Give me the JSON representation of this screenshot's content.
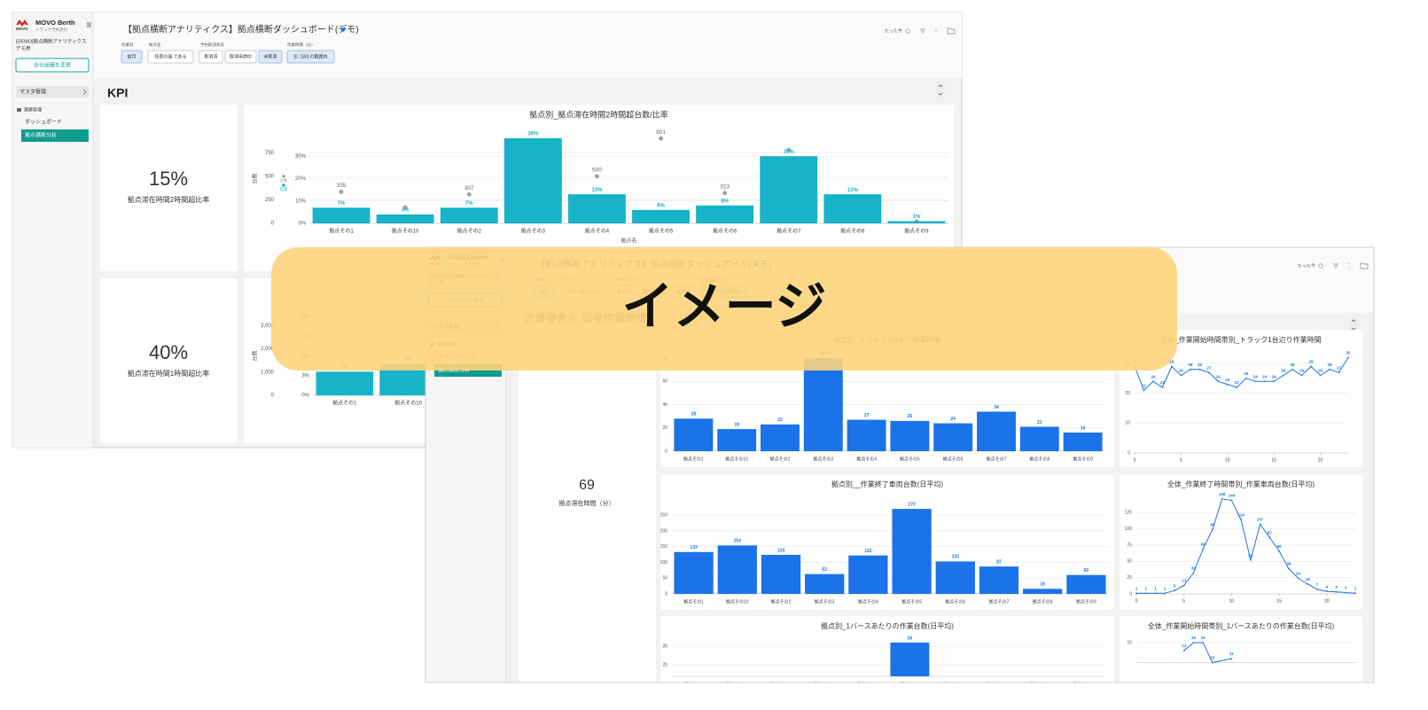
{
  "sidebar": {
    "brand": "MOVO Berth",
    "logo_text": "MOVO",
    "tagline": "トラック予約受付",
    "org": [
      "[DEMO]拠点横断アナリティクス",
      "デモ用"
    ],
    "change_org": "会社組織を変更",
    "menu": [
      "マスタ管理",
      "実績管理",
      "ダッシュボード",
      "拠点横断分析"
    ]
  },
  "header": {
    "title": "【拠点横断アナリティクス】拠点横断ダッシュボード(デモ)",
    "updated": "たった今",
    "filters": [
      {
        "label": "作業日",
        "options": [
          "前月"
        ],
        "selected": [
          0
        ]
      },
      {
        "label": "拠点名",
        "options": [
          "任意の値 である"
        ],
        "selected": []
      },
      {
        "label": "予約取消状況",
        "options": [
          "取消済",
          "取消申請中",
          "未取消"
        ],
        "selected": [
          2
        ]
      },
      {
        "label": "作業時間（分）",
        "options": [
          "[0, 180] の範囲内"
        ],
        "selected": [
          0
        ]
      }
    ]
  },
  "back": {
    "section": "KPI",
    "kpis": [
      {
        "value": "15%",
        "label": "拠点滞在時間2時間超比率"
      },
      {
        "value": "40%",
        "label": "拠点滞在時間1時間超比率"
      }
    ],
    "charts": [
      {
        "type": "bar",
        "title": "拠点別_拠点滞在時間2時間超台数/比率",
        "x_label": "拠点名",
        "y_label": "台数",
        "categories": [
          "拠点その1",
          "拠点その10",
          "拠点その2",
          "拠点その3",
          "拠点その4",
          "拠点その5",
          "拠点その6",
          "拠点その7",
          "拠点その8",
          "拠点その9"
        ],
        "series": [
          {
            "name": "台数",
            "kind": "point",
            "color": "#9e9e9e",
            "values": [
              335,
              170,
              307,
              820,
              500,
              901,
              323,
              780,
              110,
              20
            ],
            "value_labels": [
              "335",
              null,
              "307",
              null,
              "500",
              "901",
              "323",
              null,
              null,
              null
            ]
          },
          {
            "name": "比率",
            "axis": "y2",
            "color": "#17b3c8",
            "values": [
              7,
              4,
              7,
              38,
              13,
              6,
              8,
              30,
              13,
              1
            ],
            "value_labels": [
              "7%",
              "4%",
              "7%",
              "38%",
              "13%",
              "6%",
              "8%",
              "30%",
              "13%",
              "1%"
            ]
          }
        ],
        "ylim": [
          0,
          950
        ],
        "yticks": [
          0,
          250,
          500,
          750
        ],
        "y2lim": [
          0,
          40
        ],
        "y2ticks": [
          {
            "value": 0,
            "label": "0%"
          },
          {
            "value": 10,
            "label": "10%"
          },
          {
            "value": 20,
            "label": "20%"
          },
          {
            "value": 30,
            "label": "30%"
          }
        ],
        "grid": true
      },
      {
        "type": "bar",
        "y_label": "台数",
        "categories": [
          "拠点その1",
          "拠点その10"
        ],
        "series": [
          {
            "axis": "y2",
            "color": "#17b3c8",
            "values": [
              3,
              4
            ],
            "value_labels": [
              "3%",
              "4%"
            ]
          }
        ],
        "ylim": [
          0,
          3400
        ],
        "yticks": [
          0,
          {
            "value": 1000,
            "label": "1,000"
          },
          {
            "value": 2000,
            "label": "2,000"
          },
          {
            "value": 3000,
            "label": "3,000"
          }
        ],
        "y2lim": [
          0,
          10
        ],
        "y2ticks": [
          {
            "value": 0,
            "label": "0%"
          },
          {
            "value": 2.5,
            "label": "3%"
          },
          {
            "value": 5,
            "label": "5%"
          },
          {
            "value": 7.5,
            "label": "8%"
          },
          {
            "value": 10,
            "label": "10%"
          }
        ],
        "grid": true
      }
    ]
  },
  "front": {
    "section": "改善要素②_荷役作業時間",
    "kpi": {
      "value": "69",
      "label": "拠点滞在時間（分）"
    },
    "charts": [
      {
        "type": "bar",
        "title": "拠点別_トラック1台辺り作業時間",
        "categories": [
          "拠点その1",
          "拠点その10",
          "拠点その2",
          "拠点その3",
          "拠点その4",
          "拠点その5",
          "拠点その6",
          "拠点その7",
          "拠点その8",
          "拠点その9"
        ],
        "values": [
          28,
          19,
          23,
          80,
          27,
          26,
          24,
          34,
          21,
          16
        ],
        "color": "#1a73e8",
        "ylim": [
          0,
          90
        ],
        "yticks": [
          0,
          20,
          40,
          60,
          80
        ],
        "grid": true
      },
      {
        "type": "line",
        "title": "全体_作業開始時間帯別_トラック1台辺り作業時間",
        "x": [
          0,
          1,
          2,
          3,
          4,
          5,
          6,
          7,
          8,
          9,
          10,
          11,
          12,
          13,
          14,
          15,
          16,
          17,
          18,
          19,
          20,
          21,
          22,
          23
        ],
        "values": [
          29,
          21,
          24,
          22,
          29,
          26,
          28,
          28,
          27,
          24,
          23,
          22,
          25,
          24,
          24,
          24,
          26,
          28,
          26,
          29,
          26,
          28,
          27,
          32
        ],
        "color": "#1a73e8",
        "xlim": [
          0,
          23
        ],
        "xticks": [
          0,
          5,
          10,
          15,
          20
        ],
        "ylim": [
          0,
          33
        ],
        "yticks": [
          0,
          10,
          20,
          30
        ],
        "grid": true
      },
      {
        "type": "bar",
        "title": "拠点別__作業終了車両台数(日平均)",
        "categories": [
          "拠点その1",
          "拠点その10",
          "拠点その2",
          "拠点その3",
          "拠点その4",
          "拠点その5",
          "拠点その6",
          "拠点その7",
          "拠点その8",
          "拠点その9"
        ],
        "values": [
          133,
          154,
          124,
          63,
          122,
          270,
          103,
          87,
          16,
          60
        ],
        "color": "#1a73e8",
        "ylim": [
          0,
          290
        ],
        "yticks": [
          0,
          50,
          100,
          150,
          200,
          250
        ],
        "grid": true
      },
      {
        "type": "line",
        "title": "全体_作業終了時間帯別_作業車両台数(日平均)",
        "x": [
          0,
          1,
          2,
          3,
          4,
          5,
          6,
          7,
          8,
          9,
          10,
          11,
          12,
          13,
          14,
          15,
          16,
          17,
          18,
          19,
          20,
          21,
          22,
          23
        ],
        "values": [
          1,
          1,
          1,
          1,
          5,
          13,
          32,
          69,
          99,
          146,
          144,
          114,
          52,
          107,
          87,
          66,
          39,
          24,
          15,
          7,
          4,
          3,
          2,
          1
        ],
        "color": "#1a73e8",
        "xlim": [
          0,
          23
        ],
        "xticks": [
          0,
          5,
          10,
          15,
          20
        ],
        "ylim": [
          0,
          150
        ],
        "yticks": [
          0,
          25,
          50,
          75,
          100,
          125
        ],
        "grid": true
      },
      {
        "type": "bar",
        "title": "拠点別_1バースあたりの作業台数(日平均)",
        "categories": [
          "拠点その1",
          "拠点その10",
          "拠点その2",
          "拠点その3",
          "拠点その4",
          "拠点その5",
          "拠点その6",
          "拠点その7",
          "拠点その8",
          "拠点その9"
        ],
        "values": [
          null,
          null,
          null,
          null,
          null,
          26,
          null,
          null,
          null,
          null
        ],
        "color": "#1a73e8",
        "ylim": [
          17,
          30
        ],
        "yticks": [
          20,
          25
        ],
        "grid": true
      },
      {
        "type": "line",
        "title": "全体_作業開始時間帯別_1バースあたりの作業台数(日平均)",
        "x": [
          5,
          6,
          7,
          8,
          10
        ],
        "values": [
          13,
          15,
          15,
          10,
          11
        ],
        "color": "#1a73e8",
        "xlim": [
          0,
          23
        ],
        "ylim": [
          10,
          17
        ],
        "yticks": [
          15
        ],
        "grid": true
      }
    ]
  },
  "overlay": "イメージ"
}
